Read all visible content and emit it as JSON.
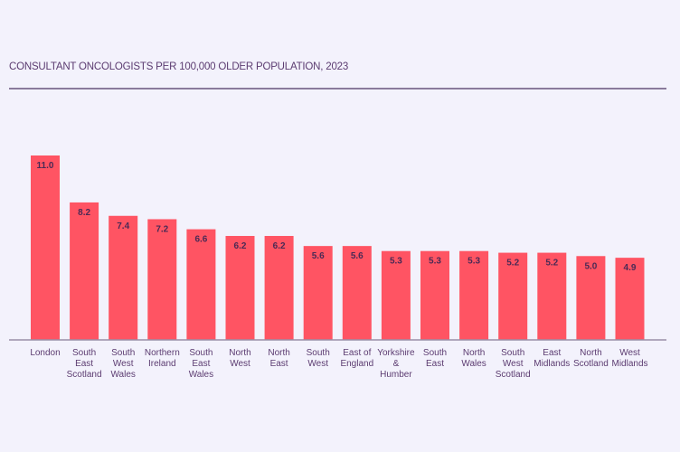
{
  "chart_data": {
    "type": "bar",
    "title": "CONSULTANT ONCOLOGISTS PER 100,000 OLDER POPULATION, 2023",
    "categories": [
      "London",
      "South\nEast\nScotland",
      "South\nWest\nWales",
      "Northern\nIreland",
      "South\nEast\nWales",
      "North\nWest",
      "North\nEast",
      "South\nWest",
      "East of\nEngland",
      "Yorkshire\n&\nHumber",
      "South\nEast",
      "North\nWales",
      "South\nWest\nScotland",
      "East\nMidlands",
      "North\nScotland",
      "West\nMidlands"
    ],
    "values": [
      11.0,
      8.2,
      7.4,
      7.2,
      6.6,
      6.2,
      6.2,
      5.6,
      5.6,
      5.3,
      5.3,
      5.3,
      5.2,
      5.2,
      5.0,
      4.9
    ],
    "data_labels": [
      "11.0",
      "8.2",
      "7.4",
      "7.2",
      "6.6",
      "6.2",
      "6.2",
      "5.6",
      "5.6",
      "5.3",
      "5.3",
      "5.3",
      "5.2",
      "5.2",
      "5.0",
      "4.9"
    ],
    "ylim": [
      0,
      11
    ],
    "grid": false,
    "bar_color": "#ff5463",
    "text_color": "#5b3b70"
  }
}
